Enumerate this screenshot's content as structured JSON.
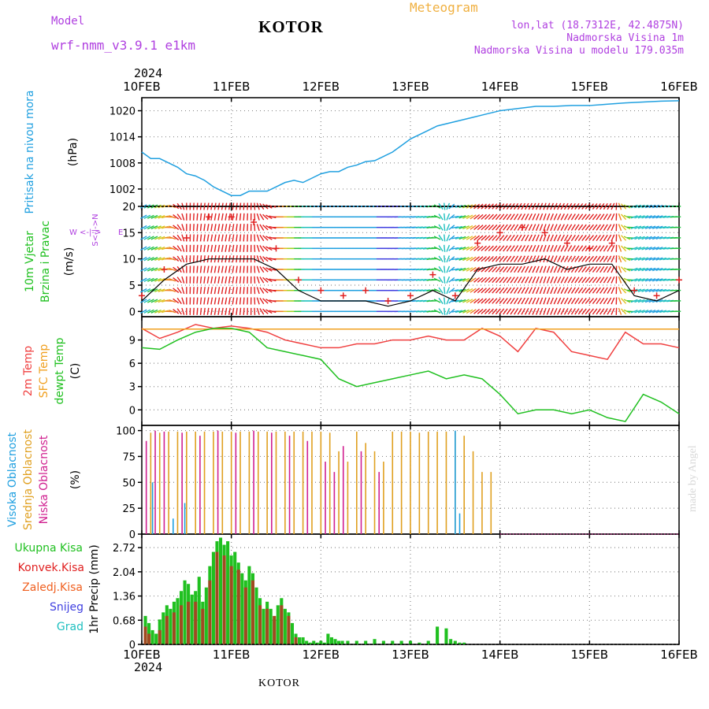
{
  "header": {
    "model_label": "Model",
    "model_name": "wrf-nmm_v3.9.1 e1km",
    "station": "KOTOR",
    "product": "Meteogram",
    "coords": "lon,lat (18.7312E, 42.4875N)",
    "elevation": "Nadmorska Visina 1m",
    "model_elevation": "Nadmorska Visina u modelu 179.035m",
    "year": "2024",
    "footer_station": "KOTOR",
    "credit": "made by Angel"
  },
  "colors": {
    "model": "#b040e0",
    "product": "#f0b040",
    "pressure": "#20a0e0",
    "wind_label": "#20c020",
    "temp2m": "#f04040",
    "sfc": "#f0a020",
    "dew": "#20c020",
    "high_cloud": "#20a0e0",
    "mid_cloud": "#e0a020",
    "low_cloud": "#d02090",
    "total_precip": "#20c020",
    "conv_precip": "#e02020",
    "frz_precip": "#f06020",
    "snow": "#4040e0",
    "hail": "#20c0c0",
    "grid": "#8a8a8a",
    "axis": "#000000"
  },
  "chart_data": [
    {
      "type": "line",
      "id": "pressure",
      "title": "",
      "ylabel_left": "Pritisak na nivou mora",
      "ylabel_unit": "(hPa)",
      "x_ticks": [
        "10FEB",
        "11FEB",
        "12FEB",
        "13FEB",
        "14FEB",
        "15FEB",
        "16FEB"
      ],
      "ylim": [
        998,
        1023
      ],
      "y_ticks": [
        1002,
        1008,
        1014,
        1020
      ],
      "series": [
        {
          "x": [
            0,
            0.1,
            0.2,
            0.3,
            0.4,
            0.5,
            0.6,
            0.7,
            0.8,
            0.9,
            1.0,
            1.1,
            1.2,
            1.3,
            1.4,
            1.5,
            1.6,
            1.7,
            1.8,
            1.9,
            2.0,
            2.1,
            2.2,
            2.3,
            2.4,
            2.5,
            2.6,
            2.7,
            2.8,
            2.9,
            3.0,
            3.1,
            3.2,
            3.3,
            3.4,
            3.5,
            3.6,
            3.7,
            3.8,
            3.9,
            4.0,
            4.2,
            4.4,
            4.6,
            4.8,
            5.0,
            5.2,
            5.4,
            5.6,
            5.8,
            6.0
          ],
          "y": [
            1010.5,
            1009,
            1009,
            1008,
            1007,
            1005.5,
            1005,
            1004,
            1002.5,
            1001.5,
            1000.5,
            1000.5,
            1001.5,
            1001.5,
            1001.5,
            1002.5,
            1003.5,
            1004,
            1003.5,
            1004.5,
            1005.5,
            1006,
            1006,
            1007,
            1007.5,
            1008.3,
            1008.5,
            1009.5,
            1010.5,
            1012,
            1013.5,
            1014.5,
            1015.5,
            1016.5,
            1017,
            1017.5,
            1018,
            1018.5,
            1019,
            1019.5,
            1020,
            1020.5,
            1021,
            1021,
            1021.2,
            1021.2,
            1021.5,
            1021.8,
            1022,
            1022.2,
            1022.3
          ]
        }
      ]
    },
    {
      "type": "barbs",
      "id": "wind",
      "title": "",
      "ylabel_left": [
        "10m Vjetar",
        "Brzina i Pravac"
      ],
      "ylabel_unit": "(m/s)",
      "direction_legend": [
        "W",
        "<-|->",
        "E",
        "S<-|->N"
      ],
      "ylim": [
        -1,
        20
      ],
      "y_ticks": [
        0,
        5,
        10,
        15,
        20
      ],
      "x": [
        0,
        0.25,
        0.5,
        0.75,
        1.0,
        1.25,
        1.5,
        1.75,
        2.0,
        2.25,
        2.5,
        2.75,
        3.0,
        3.25,
        3.5,
        3.75,
        4.0,
        4.25,
        4.5,
        4.75,
        5.0,
        5.25,
        5.5,
        5.75,
        6.0
      ],
      "speed": [
        2,
        6,
        9,
        10,
        10,
        10,
        8,
        4,
        2,
        2,
        2,
        1,
        2,
        4,
        2,
        8,
        9,
        9,
        10,
        8,
        9,
        9,
        3,
        2,
        4
      ],
      "gust": [
        3,
        8,
        14,
        18,
        18,
        17,
        12,
        6,
        4,
        3,
        4,
        2,
        3,
        7,
        3,
        13,
        15,
        16,
        15,
        13,
        12,
        13,
        4,
        3,
        6
      ],
      "direction_deg": [
        60,
        70,
        180,
        190,
        190,
        180,
        90,
        90,
        90,
        90,
        90,
        90,
        85,
        80,
        260,
        230,
        220,
        210,
        200,
        210,
        220,
        210,
        70,
        70,
        90
      ]
    },
    {
      "type": "line",
      "id": "temperature",
      "title": "",
      "ylabel_left": [
        "2m Temp",
        "SFC Temp",
        "dewpt Temp"
      ],
      "ylabel_unit": "(C)",
      "ylim": [
        -2,
        12
      ],
      "y_ticks": [
        0,
        3,
        6,
        9
      ],
      "series": [
        {
          "name": "2m Temp",
          "x": [
            0,
            0.2,
            0.4,
            0.6,
            0.8,
            1.0,
            1.2,
            1.4,
            1.6,
            1.8,
            2.0,
            2.2,
            2.4,
            2.6,
            2.8,
            3.0,
            3.2,
            3.4,
            3.6,
            3.8,
            4.0,
            4.2,
            4.4,
            4.6,
            4.8,
            5.0,
            5.2,
            5.4,
            5.6,
            5.8,
            6.0
          ],
          "y": [
            10.5,
            9.2,
            10,
            11,
            10.5,
            10.8,
            10.5,
            10,
            9,
            8.5,
            8,
            8,
            8.5,
            8.5,
            9,
            9,
            9.5,
            9,
            9,
            10.5,
            9.5,
            7.5,
            10.5,
            10,
            7.5,
            7,
            6.5,
            10,
            8.5,
            8.5,
            8
          ]
        },
        {
          "name": "SFC Temp",
          "x": [
            0,
            6
          ],
          "y": [
            10.4,
            10.4
          ]
        },
        {
          "name": "dewpt Temp",
          "x": [
            0,
            0.2,
            0.4,
            0.6,
            0.8,
            1.0,
            1.2,
            1.4,
            1.6,
            1.8,
            2.0,
            2.2,
            2.4,
            2.6,
            2.8,
            3.0,
            3.2,
            3.4,
            3.6,
            3.8,
            4.0,
            4.2,
            4.4,
            4.6,
            4.8,
            5.0,
            5.2,
            5.4,
            5.6,
            5.8,
            6.0
          ],
          "y": [
            8,
            7.8,
            9,
            10,
            10.5,
            10.5,
            10,
            8,
            7.5,
            7,
            6.5,
            4,
            3,
            3.5,
            4,
            4.5,
            5,
            4,
            4.5,
            4,
            2,
            -0.5,
            0,
            0,
            -0.5,
            0,
            -1,
            -1.5,
            2,
            1,
            -0.5
          ]
        }
      ]
    },
    {
      "type": "bar",
      "id": "clouds",
      "title": "",
      "ylabel_left": [
        "Visoka Oblacnost",
        "Srednja Oblacnost",
        "Niska Oblacnost"
      ],
      "ylabel_unit": "(%)",
      "ylim": [
        0,
        105
      ],
      "y_ticks": [
        0,
        25,
        50,
        75,
        100
      ],
      "series": [
        {
          "name": "Srednja Oblacnost",
          "x": [
            0.1,
            0.2,
            0.3,
            0.4,
            0.5,
            0.6,
            0.7,
            0.8,
            0.9,
            1.0,
            1.1,
            1.2,
            1.3,
            1.4,
            1.5,
            1.6,
            1.7,
            1.8,
            1.9,
            2.0,
            2.1,
            2.2,
            2.3,
            2.4,
            2.5,
            2.6,
            2.7,
            2.8,
            2.9,
            3.0,
            3.1,
            3.2,
            3.3,
            3.4,
            3.5,
            3.6,
            3.7,
            3.8,
            3.9
          ],
          "y": [
            98,
            98,
            99,
            99,
            99,
            99,
            99,
            99,
            99,
            99,
            99,
            99,
            99,
            99,
            99,
            99,
            99,
            99,
            99,
            99,
            98,
            80,
            70,
            99,
            88,
            80,
            70,
            99,
            99,
            99,
            98,
            99,
            99,
            99,
            99,
            95,
            80,
            60,
            60
          ]
        },
        {
          "name": "Niska Oblacnost",
          "x": [
            0.05,
            0.15,
            0.25,
            0.45,
            0.65,
            0.85,
            1.05,
            1.25,
            1.45,
            1.65,
            1.85,
            2.05,
            2.15,
            2.25,
            2.45,
            2.65
          ],
          "y": [
            90,
            100,
            99,
            98,
            95,
            100,
            98,
            100,
            98,
            95,
            90,
            70,
            60,
            85,
            80,
            60
          ]
        },
        {
          "name": "Visoka Oblacnost",
          "x": [
            0.12,
            0.35,
            0.48,
            3.5,
            3.55
          ],
          "y": [
            50,
            15,
            30,
            100,
            20
          ]
        }
      ]
    },
    {
      "type": "bar",
      "id": "precip",
      "title": "",
      "ylabel_left": [
        "Ukupna Kisa",
        "Konvek.Kisa",
        "Zaledj.Kisa",
        "Snijeg",
        "Grad"
      ],
      "ylabel_unit": "1hr Precip (mm)",
      "ylim": [
        0,
        3.1
      ],
      "y_ticks": [
        0,
        0.68,
        1.36,
        2.04,
        2.72
      ],
      "series": [
        {
          "name": "Ukupna Kisa",
          "x": [
            0.04,
            0.08,
            0.12,
            0.16,
            0.2,
            0.24,
            0.28,
            0.32,
            0.36,
            0.4,
            0.44,
            0.48,
            0.52,
            0.56,
            0.6,
            0.64,
            0.68,
            0.72,
            0.76,
            0.8,
            0.84,
            0.88,
            0.92,
            0.96,
            1.0,
            1.04,
            1.08,
            1.12,
            1.16,
            1.2,
            1.24,
            1.28,
            1.32,
            1.36,
            1.4,
            1.44,
            1.48,
            1.52,
            1.56,
            1.6,
            1.64,
            1.68,
            1.72,
            1.76,
            1.8,
            1.84,
            1.88,
            1.92,
            1.96,
            2.0,
            2.04,
            2.08,
            2.12,
            2.16,
            2.2,
            2.24,
            2.3,
            2.4,
            2.5,
            2.6,
            2.7,
            2.8,
            2.9,
            3.0,
            3.1,
            3.2,
            3.3,
            3.4,
            3.45,
            3.5,
            3.55,
            3.6
          ],
          "y": [
            0.8,
            0.6,
            0.4,
            0.3,
            0.7,
            0.9,
            1.1,
            1.0,
            1.2,
            1.3,
            1.5,
            1.8,
            1.7,
            1.4,
            1.5,
            1.9,
            1.2,
            1.6,
            2.2,
            2.6,
            2.9,
            3.0,
            2.8,
            2.9,
            2.5,
            2.6,
            2.3,
            2.0,
            1.8,
            2.2,
            2.0,
            1.6,
            1.3,
            1.0,
            1.2,
            1.0,
            0.7,
            1.1,
            1.3,
            1.0,
            0.9,
            0.6,
            0.3,
            0.2,
            0.2,
            0.1,
            0.05,
            0.1,
            0.05,
            0.1,
            0.05,
            0.3,
            0.2,
            0.15,
            0.1,
            0.1,
            0.1,
            0.1,
            0.1,
            0.15,
            0.1,
            0.1,
            0.1,
            0.1,
            0.05,
            0.1,
            0.5,
            0.45,
            0.15,
            0.1,
            0.05,
            0.05
          ]
        },
        {
          "name": "Konvek.Kisa",
          "x": [
            0.04,
            0.08,
            0.2,
            0.28,
            0.36,
            0.44,
            0.52,
            0.6,
            0.68,
            0.76,
            0.84,
            0.92,
            1.0,
            1.08,
            1.16,
            1.24,
            1.32,
            1.4,
            1.48,
            1.56,
            1.64,
            1.72
          ],
          "y": [
            0.5,
            0.3,
            0.4,
            0.8,
            0.9,
            1.1,
            1.2,
            1.2,
            1.0,
            1.8,
            2.6,
            2.5,
            2.2,
            2.1,
            1.6,
            1.8,
            1.1,
            1.0,
            0.8,
            1.1,
            0.8,
            0.2
          ]
        }
      ]
    }
  ]
}
